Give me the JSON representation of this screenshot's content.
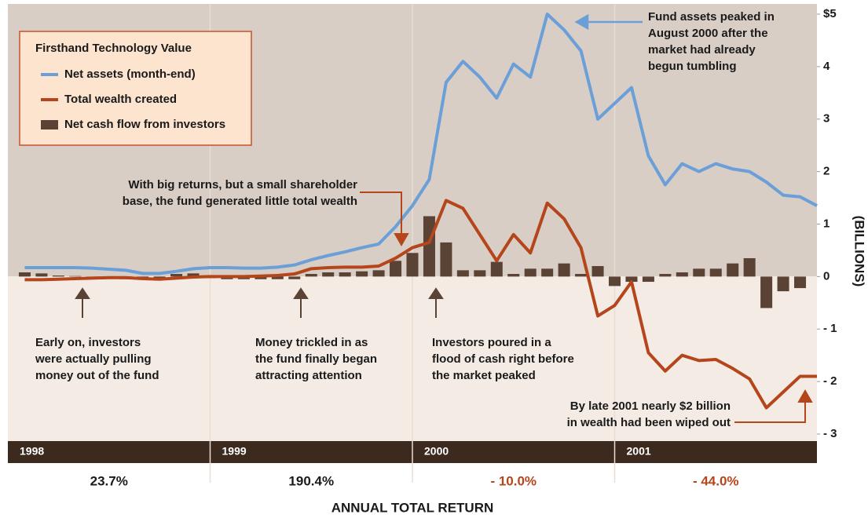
{
  "chart_data": {
    "type": "bar-line",
    "categories": [
      "1998",
      null,
      null,
      null,
      null,
      null,
      null,
      null,
      null,
      null,
      null,
      null,
      "1999",
      null,
      null,
      null,
      null,
      null,
      null,
      null,
      null,
      null,
      null,
      null,
      "2000",
      null,
      null,
      null,
      null,
      null,
      null,
      null,
      null,
      null,
      null,
      null,
      "2001",
      null,
      null,
      null,
      null,
      null,
      null,
      null,
      null,
      null,
      null,
      null
    ],
    "legend_title": "Firsthand Technology Value",
    "series": [
      {
        "name": "Net assets (month-end)",
        "kind": "line",
        "color": "#6a9fd8",
        "values": [
          0.17,
          0.17,
          0.17,
          0.17,
          0.16,
          0.14,
          0.12,
          0.06,
          0.06,
          0.1,
          0.15,
          0.17,
          0.17,
          0.16,
          0.16,
          0.18,
          0.22,
          0.32,
          0.4,
          0.47,
          0.55,
          0.62,
          0.95,
          1.35,
          1.85,
          3.7,
          4.1,
          3.8,
          3.4,
          4.05,
          3.8,
          5.0,
          4.7,
          4.3,
          3.0,
          3.3,
          3.6,
          2.3,
          1.75,
          2.15,
          2.0,
          2.15,
          2.05,
          2.0,
          1.8,
          1.55,
          1.52,
          1.35
        ]
      },
      {
        "name": "Total wealth created",
        "kind": "line",
        "color": "#b5451b",
        "values": [
          -0.06,
          -0.06,
          -0.05,
          -0.04,
          -0.03,
          -0.02,
          -0.02,
          -0.04,
          -0.05,
          -0.03,
          -0.01,
          0,
          0,
          0,
          0.01,
          0.02,
          0.05,
          0.15,
          0.17,
          0.18,
          0.18,
          0.2,
          0.35,
          0.55,
          0.65,
          1.45,
          1.3,
          0.8,
          0.3,
          0.8,
          0.45,
          1.4,
          1.1,
          0.55,
          -0.75,
          -0.55,
          -0.1,
          -1.45,
          -1.8,
          -1.5,
          -1.6,
          -1.58,
          -1.75,
          -1.95,
          -2.5,
          -2.2,
          -1.9,
          -1.9
        ]
      },
      {
        "name": "Net cash flow from investors",
        "kind": "bar",
        "color": "#5a4334",
        "values": [
          0.08,
          0.06,
          0.02,
          0.01,
          -0.02,
          -0.03,
          -0.05,
          -0.06,
          -0.04,
          0.05,
          0.06,
          -0.03,
          -0.05,
          -0.05,
          -0.05,
          -0.05,
          -0.05,
          0.05,
          0.08,
          0.08,
          0.1,
          0.12,
          0.3,
          0.45,
          1.15,
          0.65,
          0.12,
          0.12,
          0.28,
          0.05,
          0.15,
          0.15,
          0.25,
          0.05,
          0.2,
          -0.18,
          -0.1,
          -0.1,
          0.05,
          0.08,
          0.15,
          0.15,
          0.25,
          0.35,
          -0.6,
          -0.28,
          -0.22,
          null
        ]
      }
    ],
    "ylim": [
      -3,
      5
    ],
    "yticks": [
      {
        "value": 5,
        "label": "$5"
      },
      4,
      3,
      2,
      1,
      0,
      {
        "value": -1,
        "label": "- 1"
      },
      {
        "value": -2,
        "label": "- 2"
      },
      {
        "value": -3,
        "label": "- 3"
      }
    ],
    "y_label": "(BILLIONS)",
    "annual_returns": {
      "label": "ANNUAL TOTAL RETURN",
      "values": [
        23.7,
        190.4,
        -10.0,
        -44.0
      ],
      "value_labels": [
        "23.7%",
        "190.4%",
        "- 10.0%",
        "- 44.0%"
      ]
    },
    "annotations": [
      {
        "lines": [
          "Fund assets peaked in",
          "August 2000 after the",
          "market had already",
          "begun tumbling"
        ]
      },
      {
        "lines": [
          "With big returns, but a small shareholder",
          "base, the fund generated little total wealth"
        ]
      },
      {
        "lines": [
          "Early on, investors",
          "were actually pulling",
          "money out of the fund"
        ]
      },
      {
        "lines": [
          "Money trickled in as",
          "the fund finally began",
          "attracting attention"
        ]
      },
      {
        "lines": [
          "Investors poured in a",
          "flood of cash right before",
          "the market peaked"
        ]
      },
      {
        "lines": [
          "By late 2001 nearly $2 billion",
          "in wealth had been wiped out"
        ]
      }
    ]
  }
}
